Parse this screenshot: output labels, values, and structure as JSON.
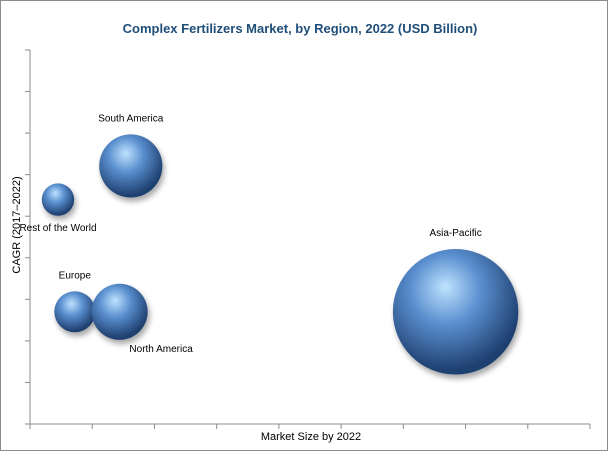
{
  "colors": {
    "bubble_light": "#bfe3ff",
    "bubble_mid": "#5a8fcf",
    "bubble_dark": "#1f4070",
    "axis": "#8c8c8c",
    "title": "#1f4e79"
  },
  "chart_data": {
    "type": "bubble",
    "title": "Complex Fertilizers Market, by Region, 2022 (USD Billion)",
    "xlabel": "Market Size by 2022",
    "ylabel": "CAGR (2017–2022)",
    "x_tick_labels_shown": false,
    "y_tick_labels_shown": false,
    "xlim": [
      0,
      10
    ],
    "ylim": [
      0,
      10
    ],
    "x_tick_count": 9,
    "y_tick_count": 9,
    "grid": false,
    "legend": "none",
    "points": [
      {
        "label": "South America",
        "x": 1.8,
        "y": 6.9,
        "size": 3.8,
        "label_pos": "above"
      },
      {
        "label": "Rest of the World",
        "x": 0.5,
        "y": 6.0,
        "size": 1.0,
        "label_pos": "below"
      },
      {
        "label": "Asia-Pacific",
        "x": 7.6,
        "y": 3.0,
        "size": 15.0,
        "label_pos": "above"
      },
      {
        "label": "Europe",
        "x": 0.8,
        "y": 3.0,
        "size": 1.6,
        "label_pos": "above"
      },
      {
        "label": "North America",
        "x": 1.6,
        "y": 3.0,
        "size": 3.0,
        "label_pos": "below-right"
      }
    ]
  }
}
